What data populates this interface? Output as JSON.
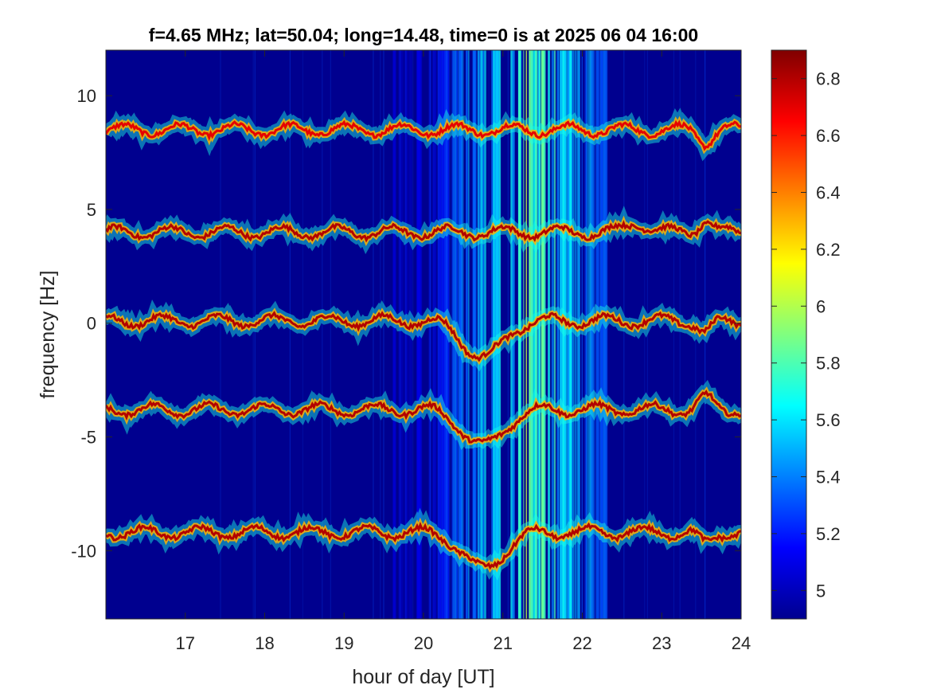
{
  "chart_data": {
    "type": "heatmap",
    "title": "f=4.65 MHz;  lat=50.04; long=14.48, time=0 is at 2025 06 04 16:00",
    "xlabel": "hour of day [UT]",
    "ylabel": "frequency [Hz]",
    "xlim": [
      16,
      24
    ],
    "ylim": [
      -13,
      12
    ],
    "xticks": [
      17,
      18,
      19,
      20,
      21,
      22,
      23,
      24
    ],
    "xtick_labels": [
      "17",
      "18",
      "19",
      "20",
      "21",
      "22",
      "23",
      "24"
    ],
    "yticks": [
      -10,
      -5,
      0,
      5,
      10
    ],
    "ytick_labels": [
      "-10",
      "-5",
      "0",
      "5",
      "10"
    ],
    "colorbar": {
      "clim": [
        4.9,
        6.9
      ],
      "ticks": [
        5,
        5.2,
        5.4,
        5.6,
        5.8,
        6,
        6.2,
        6.4,
        6.6,
        6.8
      ],
      "tick_labels": [
        "5",
        "5.2",
        "5.4",
        "5.6",
        "5.8",
        "6",
        "6.2",
        "6.4",
        "6.6",
        "6.8"
      ],
      "colormap": "jet"
    },
    "background_value": 4.95,
    "traces": [
      {
        "name": "",
        "baseline_hz": 8.5,
        "intensity": 6.7
      },
      {
        "name": "",
        "baseline_hz": 4.0,
        "intensity": 6.8
      },
      {
        "name": "",
        "baseline_hz": 0.1,
        "intensity": 6.8
      },
      {
        "name": "",
        "baseline_hz": -3.8,
        "intensity": 6.8
      },
      {
        "name": "",
        "baseline_hz": -9.2,
        "intensity": 6.8
      }
    ],
    "noise_band": {
      "x_start": 19.6,
      "x_end": 22.3,
      "peak_x": 21.3,
      "intensity": 5.9
    },
    "grid": false
  }
}
